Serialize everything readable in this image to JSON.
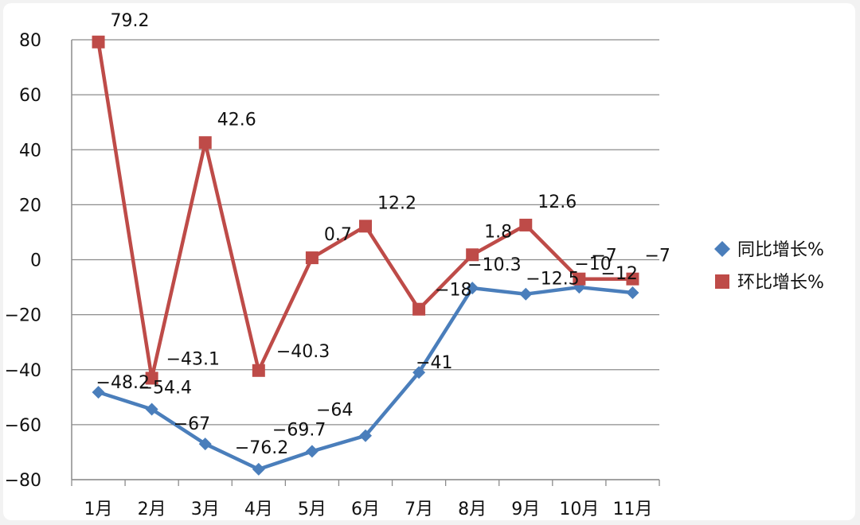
{
  "chart_data": {
    "type": "line",
    "categories": [
      "1月",
      "2月",
      "3月",
      "4月",
      "5月",
      "6月",
      "7月",
      "8月",
      "9月",
      "10月",
      "11月"
    ],
    "ylim": [
      -80,
      80
    ],
    "yticks": [
      80,
      60,
      40,
      20,
      0,
      -20,
      -40,
      -60,
      -80
    ],
    "ytick_labels": [
      "80",
      "60",
      "40",
      "20",
      "0",
      "−20",
      "−40",
      "−60",
      "−80"
    ],
    "grid": true,
    "legend_position": "right",
    "series": [
      {
        "name": "同比增长%",
        "color": "#4a7ebb",
        "marker": "diamond",
        "values": [
          -48.2,
          -54.4,
          -67,
          -76.2,
          -69.7,
          -64,
          -41,
          -10.3,
          -12.5,
          -10,
          -12
        ],
        "labels": [
          "−48.2",
          "−54.4",
          "−67",
          "−76.2",
          "−69.7",
          "−64",
          "−41",
          "−10.3",
          "−12.5",
          "−10",
          "−12"
        ]
      },
      {
        "name": "环比增长%",
        "color": "#be4b48",
        "marker": "square",
        "values": [
          79.2,
          -43.1,
          42.6,
          -40.3,
          0.7,
          12.2,
          -18,
          1.8,
          12.6,
          -7,
          -7
        ],
        "labels": [
          "79.2",
          "−43.1",
          "42.6",
          "−40.3",
          "0.7",
          "12.2",
          "−18",
          "1.8",
          "12.6",
          "−7",
          "−7"
        ]
      }
    ]
  }
}
